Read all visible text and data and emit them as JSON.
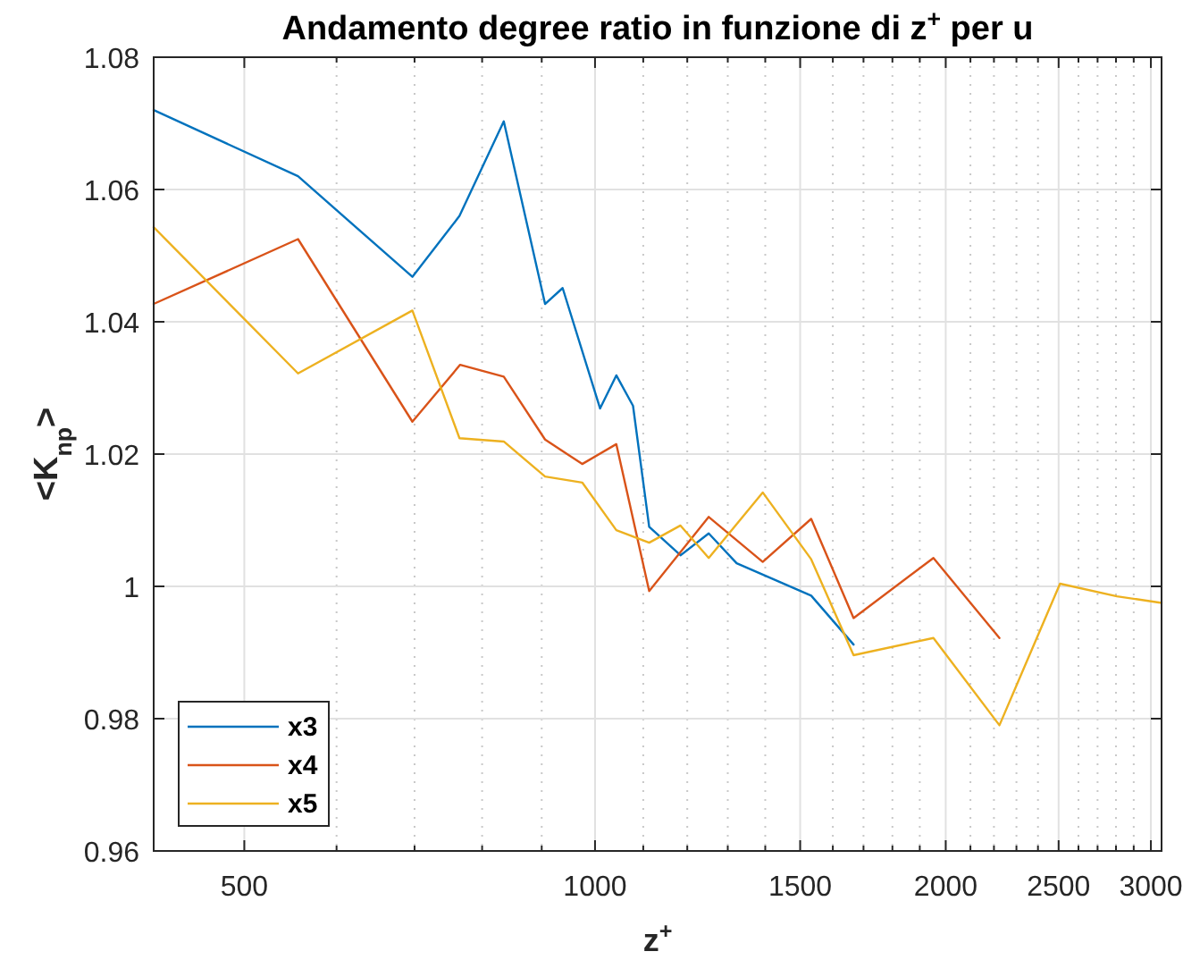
{
  "chart_data": {
    "type": "line",
    "title": "Andamento degree ratio in funzione di z$^{+}$ per u",
    "xlabel": "z$^{+}$",
    "ylabel": "<K$_{np}$>",
    "log": "x",
    "xlim": [
      418,
      3064
    ],
    "xticks": [
      500,
      {
        "value": 600,
        "label": null
      },
      {
        "value": 700,
        "label": null
      },
      {
        "value": 800,
        "label": null
      },
      {
        "value": 900,
        "label": null
      },
      1000,
      {
        "value": 1100,
        "label": null
      },
      {
        "value": 1200,
        "label": null
      },
      {
        "value": 1300,
        "label": null
      },
      {
        "value": 1400,
        "label": null
      },
      1500,
      {
        "value": 1600,
        "label": null
      },
      {
        "value": 1700,
        "label": null
      },
      {
        "value": 1800,
        "label": null
      },
      {
        "value": 1900,
        "label": null
      },
      2000,
      {
        "value": 2100,
        "label": null
      },
      {
        "value": 2200,
        "label": null
      },
      {
        "value": 2300,
        "label": null
      },
      {
        "value": 2400,
        "label": null
      },
      2500,
      {
        "value": 2600,
        "label": null
      },
      {
        "value": 2700,
        "label": null
      },
      {
        "value": 2800,
        "label": null
      },
      {
        "value": 2900,
        "label": null
      },
      3000
    ],
    "ylim": [
      0.96,
      1.08
    ],
    "yticks": [
      0.96,
      0.98,
      1,
      1.02,
      1.04,
      1.06,
      1.08
    ],
    "grid": true,
    "legend": "bottom left",
    "line_style": "solid",
    "series": [
      {
        "name": "x3",
        "color": "#0072bd",
        "x": [
          418,
          556,
          697,
          765,
          835,
          906,
          938,
          1010,
          1043,
          1078,
          1113,
          1184,
          1252,
          1323,
          1533,
          1667
        ],
        "values": [
          1.072,
          1.062,
          1.0468,
          1.056,
          1.0703,
          1.0427,
          1.0451,
          1.0269,
          1.0319,
          1.0273,
          1.009,
          1.0047,
          1.008,
          1.0035,
          0.9986,
          0.9912
        ]
      },
      {
        "name": "x4",
        "color": "#d95319",
        "x": [
          418,
          556,
          697,
          766,
          835,
          906,
          975,
          1043,
          1113,
          1252,
          1393,
          1533,
          1667,
          1952,
          2224
        ],
        "values": [
          1.0427,
          1.0525,
          1.0249,
          1.0335,
          1.0317,
          1.0222,
          1.0185,
          1.0215,
          0.9993,
          1.0105,
          1.0037,
          1.0102,
          0.9952,
          1.0043,
          0.9922
        ]
      },
      {
        "name": "x5",
        "color": "#edb120",
        "x": [
          418,
          556,
          697,
          765,
          835,
          906,
          975,
          1043,
          1113,
          1184,
          1252,
          1393,
          1533,
          1667,
          1952,
          2224,
          2507,
          2805,
          3064
        ],
        "values": [
          1.0543,
          1.0322,
          1.0417,
          1.0224,
          1.0219,
          1.0166,
          1.0157,
          1.0085,
          1.0066,
          1.0092,
          1.0043,
          1.0142,
          1.0041,
          0.9896,
          0.9922,
          0.979,
          1.0004,
          0.9985,
          0.9975
        ]
      }
    ]
  }
}
